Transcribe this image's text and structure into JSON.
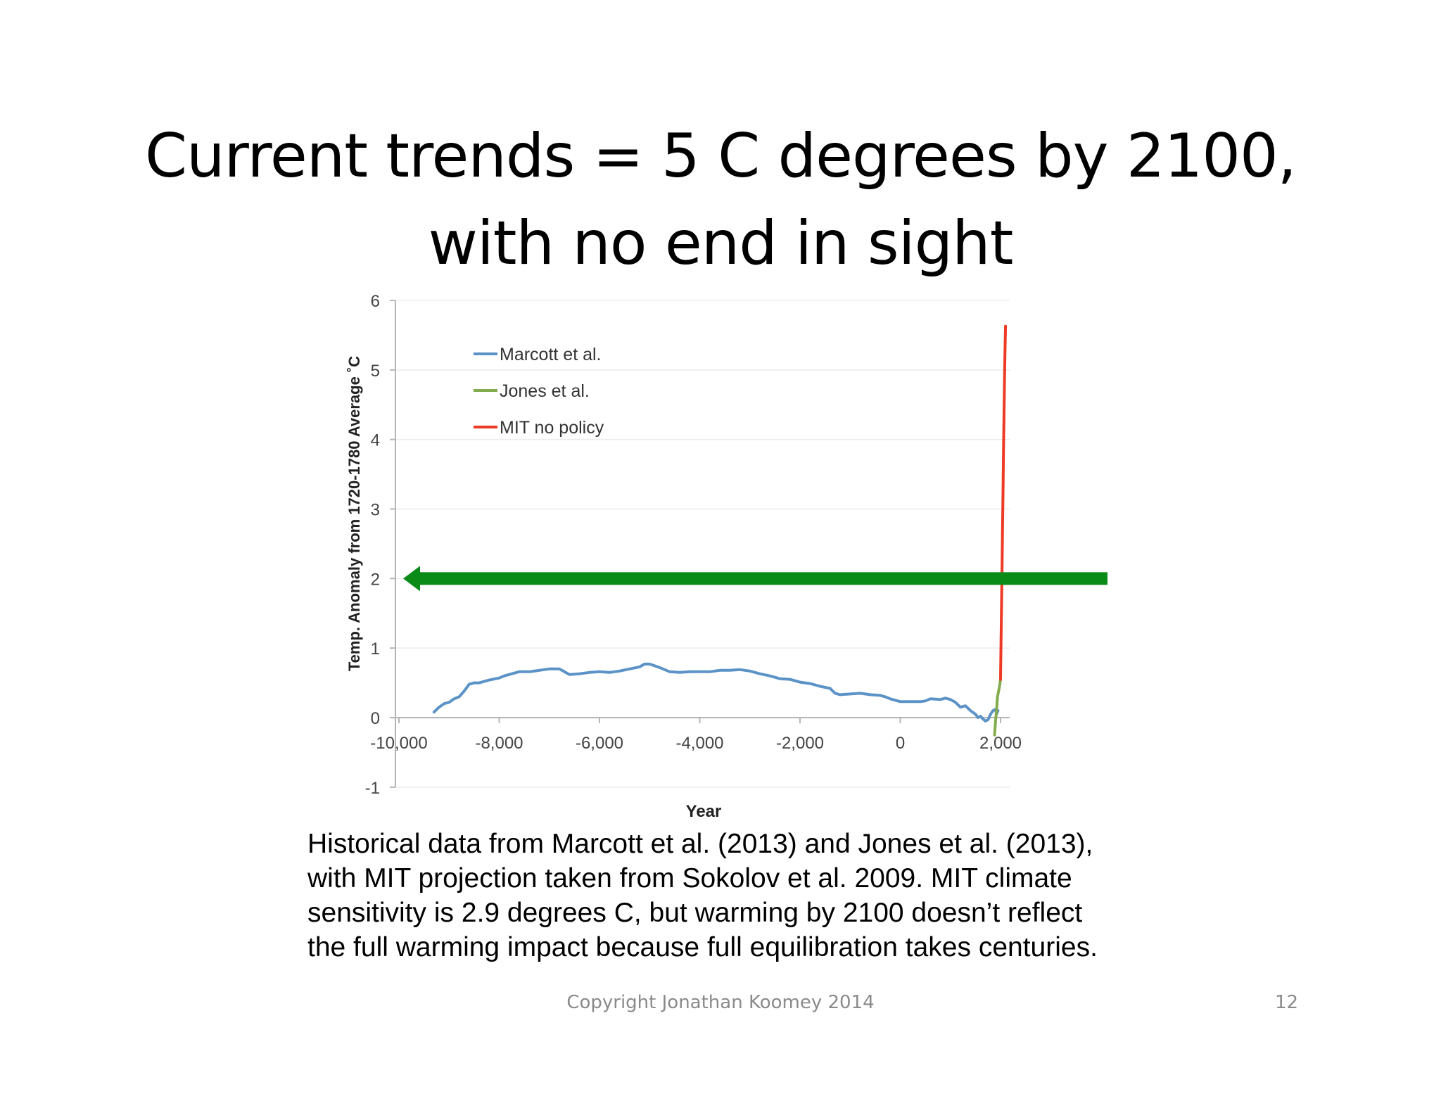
{
  "slide": {
    "title_lines": [
      "Current trends = 5 C degrees by 2100,",
      "with no end in sight"
    ],
    "caption_lines": [
      "Historical data from Marcott et al. (2013) and Jones et al. (2013),",
      "with MIT projection taken from Sokolov et al. 2009.  MIT climate",
      "sensitivity is 2.9 degrees C, but warming by 2100 doesn’t reflect",
      "the full warming impact because full equilibration takes centuries."
    ],
    "footer": "Copyright Jonathan Koomey 2014",
    "slide_number": "12"
  },
  "chart_data": {
    "type": "line",
    "title": "",
    "xlabel": "Year",
    "ylabel": "Temp. Anomaly  from 1720-1780 Average ˚C",
    "xlim": [
      -10000,
      2000
    ],
    "ylim": [
      -1,
      6
    ],
    "x_ticks": [
      -10000,
      -8000,
      -6000,
      -4000,
      -2000,
      0,
      2000
    ],
    "x_tick_labels": [
      "-10,000",
      "-8,000",
      "-6,000",
      "-4,000",
      "-2,000",
      "0",
      "2,000"
    ],
    "y_ticks": [
      -1,
      0,
      1,
      2,
      3,
      4,
      5,
      6
    ],
    "y_tick_labels": [
      "-1",
      "0",
      "1",
      "2",
      "3",
      "4",
      "5",
      "6"
    ],
    "grid": "horizontal",
    "legend_position": "top-left",
    "series": [
      {
        "name": "Marcott et al.",
        "color": "#5b93c7",
        "points": [
          [
            -9300,
            0.08
          ],
          [
            -9200,
            0.15
          ],
          [
            -9100,
            0.2
          ],
          [
            -9000,
            0.22
          ],
          [
            -8900,
            0.27
          ],
          [
            -8800,
            0.3
          ],
          [
            -8700,
            0.38
          ],
          [
            -8600,
            0.48
          ],
          [
            -8500,
            0.5
          ],
          [
            -8400,
            0.5
          ],
          [
            -8300,
            0.52
          ],
          [
            -8200,
            0.54
          ],
          [
            -8000,
            0.57
          ],
          [
            -7900,
            0.6
          ],
          [
            -7800,
            0.62
          ],
          [
            -7600,
            0.66
          ],
          [
            -7400,
            0.66
          ],
          [
            -7200,
            0.68
          ],
          [
            -7000,
            0.7
          ],
          [
            -6900,
            0.7
          ],
          [
            -6800,
            0.7
          ],
          [
            -6600,
            0.62
          ],
          [
            -6400,
            0.63
          ],
          [
            -6200,
            0.65
          ],
          [
            -6000,
            0.66
          ],
          [
            -5800,
            0.65
          ],
          [
            -5600,
            0.67
          ],
          [
            -5400,
            0.7
          ],
          [
            -5200,
            0.73
          ],
          [
            -5100,
            0.77
          ],
          [
            -5000,
            0.77
          ],
          [
            -4800,
            0.72
          ],
          [
            -4600,
            0.66
          ],
          [
            -4400,
            0.65
          ],
          [
            -4200,
            0.66
          ],
          [
            -4000,
            0.66
          ],
          [
            -3800,
            0.66
          ],
          [
            -3600,
            0.68
          ],
          [
            -3400,
            0.68
          ],
          [
            -3200,
            0.69
          ],
          [
            -3000,
            0.67
          ],
          [
            -2800,
            0.63
          ],
          [
            -2600,
            0.6
          ],
          [
            -2400,
            0.56
          ],
          [
            -2200,
            0.55
          ],
          [
            -2000,
            0.51
          ],
          [
            -1800,
            0.49
          ],
          [
            -1600,
            0.45
          ],
          [
            -1400,
            0.42
          ],
          [
            -1300,
            0.35
          ],
          [
            -1200,
            0.33
          ],
          [
            -1000,
            0.34
          ],
          [
            -800,
            0.35
          ],
          [
            -600,
            0.33
          ],
          [
            -400,
            0.32
          ],
          [
            -300,
            0.3
          ],
          [
            -200,
            0.27
          ],
          [
            0,
            0.23
          ],
          [
            200,
            0.23
          ],
          [
            400,
            0.23
          ],
          [
            500,
            0.24
          ],
          [
            600,
            0.27
          ],
          [
            800,
            0.26
          ],
          [
            900,
            0.28
          ],
          [
            1000,
            0.26
          ],
          [
            1100,
            0.22
          ],
          [
            1200,
            0.15
          ],
          [
            1300,
            0.17
          ],
          [
            1400,
            0.1
          ],
          [
            1500,
            0.05
          ],
          [
            1550,
            0.0
          ],
          [
            1600,
            0.02
          ],
          [
            1650,
            -0.02
          ],
          [
            1700,
            -0.05
          ],
          [
            1750,
            -0.03
          ],
          [
            1800,
            0.05
          ],
          [
            1850,
            0.1
          ],
          [
            1900,
            0.12
          ],
          [
            1920,
            0.05
          ],
          [
            1950,
            0.1
          ]
        ]
      },
      {
        "name": "Jones et al.",
        "color": "#82ac4e",
        "points": [
          [
            1880,
            -0.25
          ],
          [
            1900,
            -0.05
          ],
          [
            1920,
            0.1
          ],
          [
            1940,
            0.3
          ],
          [
            1960,
            0.38
          ],
          [
            1980,
            0.45
          ],
          [
            2000,
            0.55
          ]
        ]
      },
      {
        "name": "MIT no policy",
        "color": "#ee3a24",
        "points": [
          [
            2000,
            0.55
          ],
          [
            2010,
            1.1
          ],
          [
            2020,
            1.6
          ],
          [
            2030,
            2.1
          ],
          [
            2040,
            2.7
          ],
          [
            2050,
            3.3
          ],
          [
            2060,
            3.9
          ],
          [
            2070,
            4.4
          ],
          [
            2080,
            4.9
          ],
          [
            2090,
            5.3
          ],
          [
            2100,
            5.63
          ]
        ]
      }
    ],
    "annotation_arrow": {
      "label": "",
      "y": 2,
      "x_start": 2200,
      "x_end": -10000,
      "color": "#0a8a17"
    }
  }
}
